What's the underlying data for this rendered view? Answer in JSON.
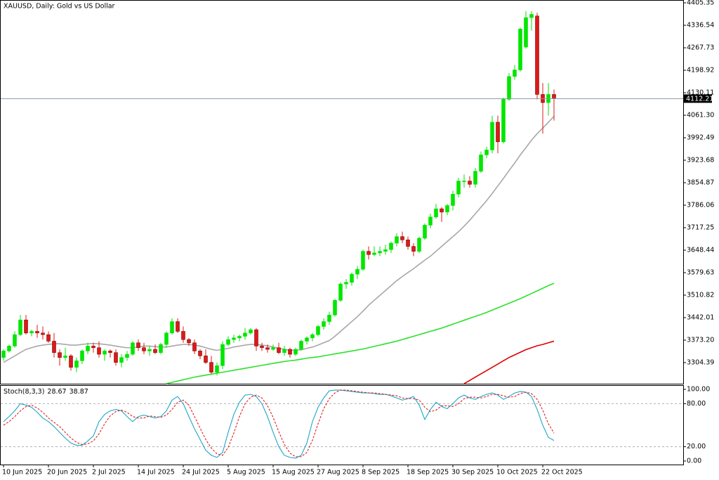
{
  "chart_data": [
    {
      "type": "candlestick",
      "title": "XAUUSD, Daily:  Gold vs US Dollar",
      "up_color": "#00e600",
      "down_color": "#e01818",
      "categories": [
        "10 Jun 2025",
        null,
        null,
        null,
        null,
        null,
        null,
        null,
        "20 Jun 2025",
        null,
        null,
        null,
        null,
        null,
        null,
        null,
        "2 Jul 2025",
        null,
        null,
        null,
        null,
        null,
        null,
        null,
        "14 Jul 2025",
        null,
        null,
        null,
        null,
        null,
        null,
        null,
        "24 Jul 2025",
        null,
        null,
        null,
        null,
        null,
        null,
        null,
        "5 Aug 2025",
        null,
        null,
        null,
        null,
        null,
        null,
        null,
        "15 Aug 2025",
        null,
        null,
        null,
        null,
        null,
        null,
        null,
        "27 Aug 2025",
        null,
        null,
        null,
        null,
        null,
        null,
        null,
        "8 Sep 2025",
        null,
        null,
        null,
        null,
        null,
        null,
        null,
        "18 Sep 2025",
        null,
        null,
        null,
        null,
        null,
        null,
        null,
        "30 Sep 2025",
        null,
        null,
        null,
        null,
        null,
        null,
        null,
        "10 Oct 2025",
        null,
        null,
        null,
        null,
        null,
        null,
        null,
        "22 Oct 2025",
        null,
        null
      ],
      "open": [
        3320,
        3340,
        3355,
        3390,
        3435,
        3395,
        3400,
        3395,
        3390,
        3370,
        3335,
        3320,
        3325,
        3290,
        3310,
        3340,
        3355,
        3350,
        3330,
        3340,
        3335,
        3305,
        3320,
        3330,
        3365,
        3350,
        3340,
        3345,
        3335,
        3360,
        3395,
        3430,
        3400,
        3375,
        3365,
        3340,
        3325,
        3305,
        3275,
        3295,
        3360,
        3375,
        3380,
        3385,
        3395,
        3405,
        3355,
        3350,
        3345,
        3350,
        3335,
        3345,
        3330,
        3345,
        3370,
        3380,
        3390,
        3415,
        3430,
        3450,
        3495,
        3545,
        3550,
        3575,
        3590,
        3645,
        3635,
        3640,
        3645,
        3650,
        3670,
        3690,
        3680,
        3660,
        3645,
        3685,
        3725,
        3750,
        3775,
        3765,
        3785,
        3820,
        3860,
        3860,
        3850,
        3890,
        3940,
        3955,
        4040,
        3980,
        4110,
        4180,
        4200,
        4270,
        4360,
        4365,
        4125,
        4100,
        4125
      ],
      "high": [
        3345,
        3360,
        3400,
        3450,
        3450,
        3405,
        3420,
        3415,
        3400,
        3395,
        3345,
        3350,
        3330,
        3320,
        3345,
        3365,
        3365,
        3370,
        3345,
        3345,
        3345,
        3330,
        3340,
        3370,
        3375,
        3365,
        3355,
        3360,
        3365,
        3400,
        3440,
        3440,
        3415,
        3380,
        3375,
        3345,
        3345,
        3325,
        3305,
        3370,
        3385,
        3390,
        3390,
        3410,
        3410,
        3410,
        3365,
        3360,
        3360,
        3365,
        3355,
        3350,
        3350,
        3375,
        3385,
        3395,
        3420,
        3440,
        3460,
        3500,
        3550,
        3560,
        3580,
        3600,
        3650,
        3660,
        3660,
        3660,
        3665,
        3675,
        3700,
        3705,
        3690,
        3670,
        3690,
        3730,
        3760,
        3790,
        3780,
        3790,
        3830,
        3870,
        3880,
        3875,
        3900,
        3950,
        3965,
        4060,
        4060,
        4115,
        4190,
        4215,
        4330,
        4380,
        4380,
        4375,
        4160,
        4160,
        4140
      ],
      "low": [
        3310,
        3335,
        3350,
        3385,
        3390,
        3385,
        3380,
        3375,
        3365,
        3320,
        3295,
        3310,
        3280,
        3275,
        3300,
        3330,
        3335,
        3320,
        3310,
        3320,
        3295,
        3290,
        3310,
        3325,
        3340,
        3330,
        3325,
        3330,
        3330,
        3350,
        3390,
        3395,
        3365,
        3355,
        3330,
        3315,
        3300,
        3270,
        3265,
        3285,
        3355,
        3365,
        3370,
        3375,
        3390,
        3340,
        3340,
        3335,
        3340,
        3330,
        3325,
        3320,
        3325,
        3340,
        3360,
        3370,
        3385,
        3405,
        3420,
        3445,
        3490,
        3530,
        3540,
        3560,
        3585,
        3620,
        3630,
        3630,
        3635,
        3640,
        3660,
        3670,
        3650,
        3630,
        3640,
        3680,
        3715,
        3745,
        3735,
        3755,
        3770,
        3810,
        3840,
        3840,
        3840,
        3885,
        3930,
        3945,
        3945,
        3975,
        4105,
        4170,
        4195,
        4265,
        4320,
        4110,
        4005,
        4060,
        4045
      ],
      "close": [
        3340,
        3355,
        3390,
        3435,
        3395,
        3400,
        3395,
        3390,
        3370,
        3335,
        3320,
        3325,
        3290,
        3310,
        3340,
        3355,
        3350,
        3330,
        3340,
        3335,
        3305,
        3320,
        3330,
        3365,
        3350,
        3340,
        3345,
        3335,
        3360,
        3395,
        3430,
        3400,
        3375,
        3365,
        3340,
        3325,
        3305,
        3275,
        3295,
        3360,
        3375,
        3380,
        3385,
        3395,
        3405,
        3355,
        3350,
        3345,
        3350,
        3335,
        3345,
        3330,
        3345,
        3370,
        3380,
        3390,
        3415,
        3430,
        3450,
        3495,
        3545,
        3550,
        3575,
        3590,
        3645,
        3635,
        3640,
        3645,
        3650,
        3670,
        3690,
        3680,
        3660,
        3645,
        3685,
        3725,
        3750,
        3775,
        3765,
        3785,
        3820,
        3860,
        3860,
        3850,
        3890,
        3940,
        3955,
        4040,
        3980,
        4110,
        4180,
        4200,
        4325,
        4360,
        4370,
        4125,
        4100,
        4125,
        4112.21
      ],
      "series": [
        {
          "color": "#a8a8a8",
          "values": [
            3305,
            3315,
            3325,
            3335,
            3345,
            3350,
            3355,
            3358,
            3360,
            3362,
            3362,
            3360,
            3358,
            3358,
            3360,
            3362,
            3363,
            3362,
            3360,
            3358,
            3355,
            3352,
            3350,
            3350,
            3352,
            3355,
            3355,
            3353,
            3352,
            3352,
            3355,
            3358,
            3360,
            3360,
            3358,
            3355,
            3350,
            3345,
            3342,
            3345,
            3348,
            3352,
            3355,
            3358,
            3360,
            3360,
            3358,
            3356,
            3352,
            3348,
            3345,
            3342,
            3342,
            3344,
            3348,
            3352,
            3358,
            3365,
            3372,
            3385,
            3400,
            3415,
            3430,
            3445,
            3462,
            3480,
            3495,
            3510,
            3525,
            3540,
            3555,
            3568,
            3580,
            3592,
            3605,
            3618,
            3630,
            3645,
            3660,
            3675,
            3690,
            3705,
            3722,
            3740,
            3760,
            3780,
            3800,
            3822,
            3845,
            3868,
            3892,
            3915,
            3940,
            3962,
            3985,
            4005,
            4022,
            4040,
            4058
          ]
        },
        {
          "color": "#2ee02e",
          "values": [
            null,
            null,
            null,
            null,
            null,
            null,
            null,
            null,
            null,
            null,
            null,
            null,
            null,
            null,
            null,
            null,
            null,
            null,
            null,
            null,
            null,
            null,
            null,
            null,
            null,
            null,
            null,
            null,
            null,
            3240,
            3244,
            3248,
            3252,
            3256,
            3260,
            3263,
            3266,
            3269,
            3272,
            3275,
            3278,
            3281,
            3284,
            3287,
            3290,
            3293,
            3296,
            3299,
            3302,
            3305,
            3308,
            3310,
            3312,
            3315,
            3318,
            3320,
            3322,
            3325,
            3328,
            3331,
            3334,
            3337,
            3340,
            3343,
            3346,
            3350,
            3354,
            3358,
            3362,
            3366,
            3370,
            3375,
            3380,
            3385,
            3390,
            3395,
            3400,
            3405,
            3410,
            3416,
            3422,
            3428,
            3434,
            3440,
            3446,
            3452,
            3458,
            3465,
            3472,
            3479,
            3486,
            3493,
            3500,
            3508,
            3516,
            3524,
            3532,
            3540,
            3547
          ]
        },
        {
          "color": "#dd0000",
          "values": [
            null,
            null,
            null,
            null,
            null,
            null,
            null,
            null,
            null,
            null,
            null,
            null,
            null,
            null,
            null,
            null,
            null,
            null,
            null,
            null,
            null,
            null,
            null,
            null,
            null,
            null,
            null,
            null,
            null,
            null,
            null,
            null,
            null,
            null,
            null,
            null,
            null,
            null,
            null,
            null,
            null,
            null,
            null,
            null,
            null,
            null,
            null,
            null,
            null,
            null,
            null,
            null,
            null,
            null,
            null,
            null,
            null,
            null,
            null,
            null,
            null,
            null,
            null,
            null,
            null,
            null,
            null,
            null,
            null,
            null,
            null,
            null,
            null,
            null,
            null,
            null,
            null,
            null,
            null,
            null,
            null,
            null,
            3240,
            3250,
            3260,
            3270,
            3280,
            3290,
            3300,
            3310,
            3320,
            3328,
            3336,
            3344,
            3350,
            3356,
            3360,
            3365,
            3370
          ]
        }
      ],
      "price_line": 4112.21,
      "ylim": [
        3239.8,
        4411.8
      ],
      "yticks": [
        4405.35,
        4336.54,
        4267.73,
        4198.92,
        4130.11,
        {
          "value": 4061.3,
          "label": "4061.30"
        },
        3992.49,
        3923.68,
        3854.87,
        3786.06,
        3717.25,
        3648.44,
        3579.63,
        3510.82,
        3442.01,
        {
          "value": 3373.2,
          "label": "3373.20"
        },
        3304.39
      ]
    },
    {
      "type": "line",
      "title": "Stoch(8,3,3)",
      "series": [
        {
          "color": "#1ea7c8",
          "values": [
            55,
            62,
            70,
            80,
            78,
            75,
            68,
            60,
            55,
            48,
            40,
            32,
            25,
            22,
            22,
            28,
            35,
            55,
            65,
            70,
            72,
            70,
            62,
            55,
            62,
            64,
            62,
            60,
            62,
            70,
            85,
            90,
            80,
            62,
            45,
            30,
            15,
            8,
            5,
            12,
            40,
            65,
            82,
            92,
            93,
            90,
            80,
            62,
            40,
            20,
            8,
            5,
            4,
            8,
            25,
            55,
            75,
            88,
            98,
            99,
            99,
            98,
            97,
            96,
            95,
            95,
            94,
            93,
            93,
            91,
            88,
            85,
            87,
            90,
            78,
            58,
            72,
            82,
            76,
            73,
            80,
            88,
            92,
            88,
            86,
            90,
            93,
            95,
            92,
            86,
            90,
            95,
            97,
            96,
            90,
            72,
            50,
            33,
            28.67
          ]
        },
        {
          "color": "#e02020",
          "dashed": true,
          "values": [
            50,
            55,
            62,
            70,
            76,
            78,
            74,
            68,
            60,
            54,
            48,
            40,
            32,
            26,
            23,
            24,
            28,
            38,
            52,
            63,
            69,
            71,
            68,
            62,
            60,
            60,
            63,
            62,
            61,
            64,
            72,
            82,
            85,
            78,
            62,
            46,
            30,
            18,
            10,
            8,
            19,
            39,
            62,
            80,
            89,
            92,
            88,
            77,
            61,
            41,
            23,
            11,
            6,
            6,
            12,
            29,
            52,
            73,
            87,
            95,
            99,
            99,
            98,
            97,
            96,
            95,
            95,
            94,
            93,
            92,
            91,
            88,
            87,
            87,
            85,
            75,
            69,
            71,
            77,
            77,
            76,
            80,
            87,
            89,
            89,
            88,
            90,
            93,
            93,
            91,
            89,
            90,
            94,
            96,
            94,
            86,
            71,
            52,
            38.87
          ]
        }
      ],
      "ylim": [
        -4.9,
        104.9
      ],
      "yticks": [
        {
          "value": 100,
          "label": "100.00"
        },
        {
          "value": 80,
          "label": "80.00"
        },
        {
          "value": 20,
          "label": "20.00"
        },
        {
          "value": 0,
          "label": "0.00"
        }
      ]
    }
  ]
}
